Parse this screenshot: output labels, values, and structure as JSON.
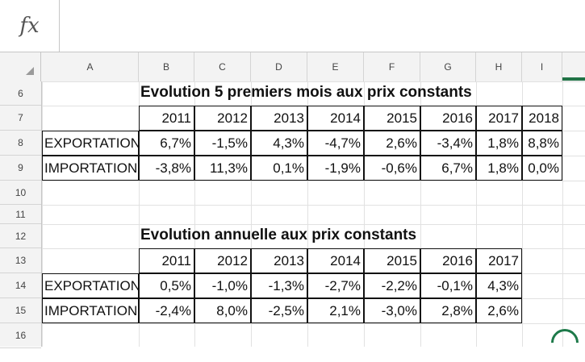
{
  "formula_bar": {
    "fx_label": "fx",
    "value": ""
  },
  "columns": [
    "A",
    "B",
    "C",
    "D",
    "E",
    "F",
    "G",
    "H",
    "I"
  ],
  "rows": [
    "6",
    "7",
    "8",
    "9",
    "10",
    "11",
    "12",
    "13",
    "14",
    "15",
    "16"
  ],
  "table1": {
    "title": "Evolution 5 premiers mois aux prix constants",
    "years": [
      "2011",
      "2012",
      "2013",
      "2014",
      "2015",
      "2016",
      "2017",
      "2018"
    ],
    "export_label": "EXPORTATION",
    "import_label": "IMPORTATION",
    "exports": [
      "6,7%",
      "-1,5%",
      "4,3%",
      "-4,7%",
      "2,6%",
      "-3,4%",
      "1,8%",
      "8,8%"
    ],
    "imports": [
      "-3,8%",
      "11,3%",
      "0,1%",
      "-1,9%",
      "-0,6%",
      "6,7%",
      "1,8%",
      "0,0%"
    ]
  },
  "table2": {
    "title": "Evolution annuelle aux prix constants",
    "years": [
      "2011",
      "2012",
      "2013",
      "2014",
      "2015",
      "2016",
      "2017"
    ],
    "export_label": "EXPORTATION",
    "import_label": "IMPORTATION",
    "exports": [
      "0,5%",
      "-1,0%",
      "-1,3%",
      "-2,7%",
      "-2,2%",
      "-0,1%",
      "4,3%"
    ],
    "imports": [
      "-2,4%",
      "8,0%",
      "-2,5%",
      "2,1%",
      "-3,0%",
      "2,8%",
      "2,6%"
    ]
  },
  "colors": {
    "accent": "#217346"
  }
}
